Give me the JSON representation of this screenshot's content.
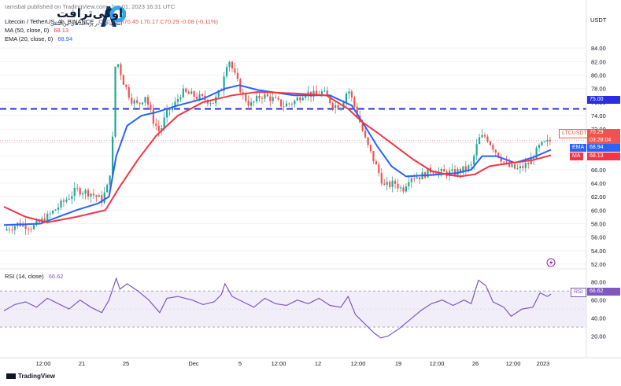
{
  "header": {
    "source": "ramsbal published on TradingView.com, Jan 01, 2023 16:31 UTC",
    "symbol": "Litecoin / TetherUS, 4h, BINANCE",
    "o": "O70.45",
    "h": "H70.45",
    "l": "L70.17",
    "c": "C70.29",
    "chg": "-0.08 (-0.11%)",
    "ma_label": "MA (50, close, 0)",
    "ma_value": "68.13",
    "ema_label": "EMA (20, close, 0)",
    "ema_value": "68.94",
    "rsi_label": "RSI (14, close)",
    "rsi_value": "66.62"
  },
  "brand": {
    "logo_text": "اوکی‌ترافت",
    "logo_sub": "انتخاب اول در پرداخت‌های بین‌المللی"
  },
  "footer": {
    "tradingview": "TradingView"
  },
  "axis": {
    "currency": "USDT"
  },
  "tags": {
    "price_symbol": "LTCUSDT",
    "price_value": "70.29",
    "countdown": "03:28:04",
    "ema": "EMA",
    "ema_value": "68.94",
    "ma": "MA",
    "ma_value": "68.13",
    "level": "75.00",
    "rsi": "RSI",
    "rsi_value": "66.62"
  },
  "colors": {
    "up": "#26a69a",
    "down": "#ef5350",
    "ema": "#2962ff",
    "ma": "#f23645",
    "rsi": "#7e57c2",
    "hline": "#2a2ee0",
    "bg": "#ffffff",
    "grid": "#f0f3fa"
  },
  "chart_data": [
    {
      "type": "candlestick",
      "title": "Litecoin / TetherUS, 4h, BINANCE",
      "ylabel": "USDT",
      "ylim": [
        52,
        86
      ],
      "yticks": [
        52,
        54,
        56,
        58,
        60,
        62,
        64,
        66,
        68,
        70,
        72,
        74,
        76,
        78,
        80,
        82,
        84
      ],
      "xticks": [
        "12:00",
        "21",
        "25",
        "Dec",
        "5",
        "12:00",
        "12",
        "12:00",
        "19",
        "12:00",
        "26",
        "12:00",
        "2023"
      ],
      "horizontal_line": 75.0,
      "last_price": 70.29,
      "close_path": [
        [
          0,
          57.0
        ],
        [
          8,
          58.0
        ],
        [
          16,
          57.5
        ],
        [
          24,
          59.0
        ],
        [
          32,
          61.0
        ],
        [
          40,
          63.0
        ],
        [
          48,
          62.5
        ],
        [
          54,
          61.5
        ],
        [
          58,
          64.0
        ],
        [
          60,
          70.5
        ],
        [
          61,
          80.0
        ],
        [
          62,
          82.5
        ],
        [
          66,
          79.0
        ],
        [
          70,
          76.5
        ],
        [
          74,
          75.5
        ],
        [
          78,
          77.0
        ],
        [
          82,
          73.5
        ],
        [
          86,
          71.5
        ],
        [
          90,
          74.5
        ],
        [
          94,
          75.5
        ],
        [
          98,
          77.5
        ],
        [
          104,
          77.0
        ],
        [
          110,
          76.5
        ],
        [
          116,
          76.0
        ],
        [
          120,
          78.0
        ],
        [
          122,
          81.0
        ],
        [
          124,
          82.5
        ],
        [
          128,
          79.5
        ],
        [
          132,
          77.0
        ],
        [
          136,
          75.5
        ],
        [
          142,
          77.0
        ],
        [
          148,
          76.5
        ],
        [
          154,
          75.5
        ],
        [
          160,
          76.0
        ],
        [
          166,
          77.5
        ],
        [
          172,
          77.0
        ],
        [
          176,
          77.5
        ],
        [
          182,
          75.5
        ],
        [
          186,
          75.5
        ],
        [
          190,
          78.0
        ],
        [
          196,
          73.5
        ],
        [
          200,
          70.0
        ],
        [
          204,
          67.5
        ],
        [
          210,
          63.5
        ],
        [
          216,
          64.0
        ],
        [
          220,
          63.0
        ],
        [
          224,
          65.0
        ],
        [
          230,
          65.0
        ],
        [
          236,
          66.0
        ],
        [
          242,
          65.5
        ],
        [
          248,
          65.5
        ],
        [
          254,
          66.0
        ],
        [
          258,
          66.5
        ],
        [
          262,
          70.5
        ],
        [
          266,
          71.0
        ],
        [
          272,
          68.5
        ],
        [
          278,
          66.5
        ],
        [
          284,
          66.0
        ],
        [
          290,
          67.0
        ],
        [
          296,
          69.5
        ],
        [
          300,
          70.0
        ],
        [
          302,
          70.29
        ]
      ],
      "series": [
        {
          "name": "EMA (20, close, 0)",
          "last": 68.94,
          "path": [
            [
              0,
              57.8
            ],
            [
              20,
              58.0
            ],
            [
              40,
              60.0
            ],
            [
              52,
              61.0
            ],
            [
              58,
              62.0
            ],
            [
              62,
              68.0
            ],
            [
              68,
              72.5
            ],
            [
              76,
              74.0
            ],
            [
              84,
              74.5
            ],
            [
              96,
              75.5
            ],
            [
              110,
              76.5
            ],
            [
              122,
              78.0
            ],
            [
              130,
              78.5
            ],
            [
              140,
              77.8
            ],
            [
              160,
              77.0
            ],
            [
              180,
              77.0
            ],
            [
              192,
              75.5
            ],
            [
              198,
              73.0
            ],
            [
              206,
              69.5
            ],
            [
              214,
              66.5
            ],
            [
              222,
              65.0
            ],
            [
              236,
              65.2
            ],
            [
              250,
              65.5
            ],
            [
              258,
              66.0
            ],
            [
              264,
              68.0
            ],
            [
              272,
              68.0
            ],
            [
              282,
              67.0
            ],
            [
              292,
              67.8
            ],
            [
              302,
              68.94
            ]
          ]
        },
        {
          "name": "MA (50, close, 0)",
          "last": 68.13,
          "path": [
            [
              0,
              60.5
            ],
            [
              12,
              59.0
            ],
            [
              24,
              58.2
            ],
            [
              40,
              59.0
            ],
            [
              56,
              60.0
            ],
            [
              64,
              63.5
            ],
            [
              74,
              67.5
            ],
            [
              84,
              71.0
            ],
            [
              96,
              74.0
            ],
            [
              110,
              76.0
            ],
            [
              126,
              77.0
            ],
            [
              140,
              77.5
            ],
            [
              160,
              77.3
            ],
            [
              178,
              77.0
            ],
            [
              190,
              75.0
            ],
            [
              198,
              73.0
            ],
            [
              206,
              71.5
            ],
            [
              216,
              69.5
            ],
            [
              226,
              67.5
            ],
            [
              236,
              65.8
            ],
            [
              246,
              65.2
            ],
            [
              252,
              65.0
            ],
            [
              260,
              65.3
            ],
            [
              268,
              66.5
            ],
            [
              280,
              67.0
            ],
            [
              292,
              67.4
            ],
            [
              302,
              68.13
            ]
          ]
        }
      ]
    },
    {
      "type": "line",
      "title": "RSI (14, close)",
      "ylim": [
        10,
        85
      ],
      "yticks": [
        20,
        40,
        60,
        80
      ],
      "bands": [
        30,
        70
      ],
      "series": [
        {
          "name": "RSI",
          "last": 66.62,
          "path": [
            [
              0,
              48
            ],
            [
              6,
              55
            ],
            [
              12,
              58
            ],
            [
              18,
              52
            ],
            [
              24,
              62
            ],
            [
              30,
              56
            ],
            [
              36,
              50
            ],
            [
              42,
              60
            ],
            [
              48,
              52
            ],
            [
              54,
              46
            ],
            [
              58,
              60
            ],
            [
              62,
              84
            ],
            [
              64,
              72
            ],
            [
              68,
              78
            ],
            [
              74,
              70
            ],
            [
              80,
              60
            ],
            [
              86,
              46
            ],
            [
              90,
              62
            ],
            [
              96,
              64
            ],
            [
              104,
              60
            ],
            [
              110,
              55
            ],
            [
              116,
              58
            ],
            [
              120,
              66
            ],
            [
              122,
              78
            ],
            [
              126,
              64
            ],
            [
              132,
              58
            ],
            [
              138,
              52
            ],
            [
              144,
              62
            ],
            [
              150,
              56
            ],
            [
              156,
              54
            ],
            [
              162,
              60
            ],
            [
              168,
              56
            ],
            [
              174,
              62
            ],
            [
              180,
              54
            ],
            [
              186,
              52
            ],
            [
              190,
              64
            ],
            [
              194,
              44
            ],
            [
              198,
              36
            ],
            [
              204,
              24
            ],
            [
              208,
              18
            ],
            [
              212,
              20
            ],
            [
              218,
              28
            ],
            [
              224,
              38
            ],
            [
              230,
              48
            ],
            [
              236,
              56
            ],
            [
              242,
              60
            ],
            [
              248,
              54
            ],
            [
              254,
              60
            ],
            [
              258,
              56
            ],
            [
              262,
              82
            ],
            [
              266,
              76
            ],
            [
              270,
              58
            ],
            [
              276,
              52
            ],
            [
              280,
              42
            ],
            [
              286,
              50
            ],
            [
              292,
              52
            ],
            [
              296,
              68
            ],
            [
              300,
              64
            ],
            [
              302,
              66.62
            ]
          ]
        }
      ]
    }
  ]
}
